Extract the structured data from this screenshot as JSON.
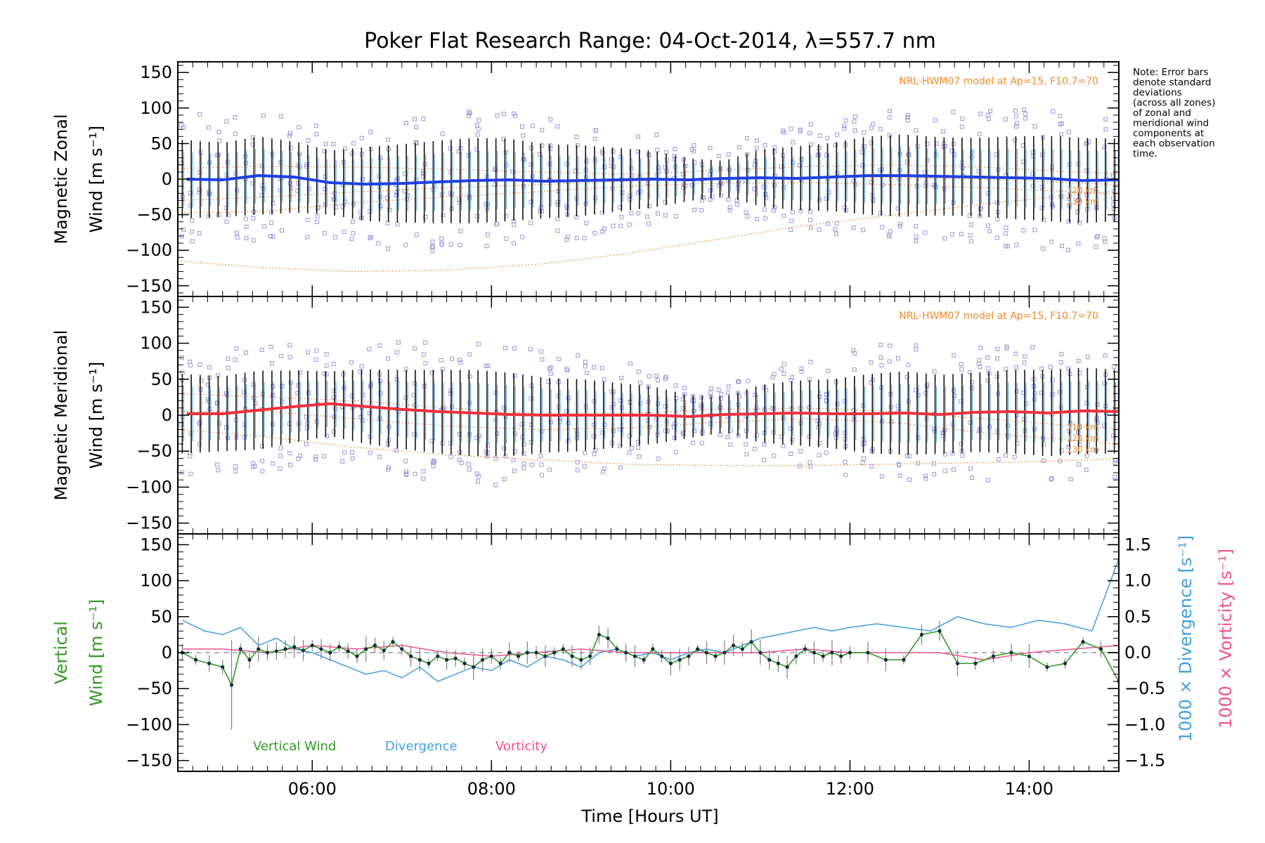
{
  "figure": {
    "title": "Poker Flat Research Range: 04-Oct-2014, λ=557.7 nm",
    "xlabel": "Time [Hours UT]",
    "note_lines": [
      "Note: Error bars",
      "denote standard",
      "deviations",
      "(across all zones)",
      "of zonal and",
      "meridional wind",
      "components at",
      "each observation",
      "time."
    ],
    "colors": {
      "zonal": "#1f3fe0",
      "meridional": "#f0303a",
      "model": "#f08a2a",
      "scatter": "#9c96dc",
      "errbar": "#101010",
      "vertical": "#2f9a20",
      "divergence": "#3f9fe0",
      "vorticity": "#f05090",
      "gray": "#808080"
    }
  },
  "chart_data": [
    {
      "type": "scatter",
      "panel": "zonal",
      "ylabel_lines": [
        "Magnetic Zonal",
        "Wind [m s⁻¹]"
      ],
      "ylim": [
        -165,
        165
      ],
      "xlim": [
        4.5,
        15.0
      ],
      "xticks": [
        "06:00",
        "08:00",
        "10:00",
        "12:00",
        "14:00"
      ],
      "xtick_values": [
        6,
        8,
        10,
        12,
        14
      ],
      "yticks": [
        -150,
        -100,
        -50,
        0,
        50,
        100,
        150
      ],
      "model_label": "NRL-HWM07 model at Ap=15, F10.7=70",
      "model_alt_labels": [
        "120 km",
        "130 km"
      ],
      "model_curves": [
        {
          "x": [
            4.5,
            5.5,
            6.5,
            7.5,
            8.5,
            9.5,
            10.5,
            11.5,
            12.5,
            13.5,
            14.5,
            15.0
          ],
          "y": [
            -115,
            -125,
            -130,
            -128,
            -120,
            -105,
            -85,
            -65,
            -50,
            -35,
            -22,
            -17
          ]
        },
        {
          "x": [
            4.5,
            5.5,
            6.5,
            7.5,
            8.5,
            9.5,
            10.5,
            11.5,
            12.5,
            13.5,
            14.5,
            15.0
          ],
          "y": [
            -48,
            -45,
            -33,
            -25,
            -18,
            -10,
            -6,
            -5,
            -8,
            -12,
            -18,
            -22
          ]
        },
        {
          "x": [
            4.5,
            5.5,
            6.5,
            7.5,
            8.5,
            9.5,
            10.5,
            11.5,
            12.5,
            13.5,
            14.5,
            15.0
          ],
          "y": [
            -30,
            -25,
            -18,
            -12,
            -8,
            -3,
            2,
            3,
            2,
            0,
            -5,
            -8
          ]
        },
        {
          "x": [
            4.5,
            5.5,
            6.5,
            7.5,
            8.5,
            9.5,
            10.5,
            11.5,
            12.5,
            13.5,
            14.5,
            15.0
          ],
          "y": [
            15,
            18,
            17,
            14,
            10,
            7,
            12,
            18,
            20,
            17,
            10,
            8
          ]
        }
      ],
      "mean_series": {
        "x": [
          4.6,
          5.0,
          5.4,
          5.8,
          6.2,
          6.6,
          7.0,
          7.4,
          7.8,
          8.2,
          8.6,
          9.0,
          9.4,
          9.8,
          10.2,
          10.6,
          11.0,
          11.4,
          11.8,
          12.2,
          12.6,
          13.0,
          13.4,
          13.8,
          14.2,
          14.6,
          15.0
        ],
        "y": [
          0,
          -1,
          5,
          3,
          -5,
          -7,
          -6,
          -4,
          -2,
          -1,
          -3,
          -2,
          -1,
          0,
          -1,
          1,
          2,
          1,
          3,
          5,
          5,
          4,
          3,
          2,
          1,
          -2,
          -1
        ]
      },
      "errorbar_sigma": [
        55,
        52,
        55,
        50,
        45,
        52,
        55,
        58,
        60,
        58,
        52,
        50,
        45,
        40,
        30,
        25,
        40,
        45,
        48,
        55,
        58,
        55,
        55,
        58,
        60,
        60,
        58
      ]
    },
    {
      "type": "scatter",
      "panel": "meridional",
      "ylabel_lines": [
        "Magnetic Meridional",
        "Wind [m s⁻¹]"
      ],
      "ylim": [
        -165,
        165
      ],
      "xlim": [
        4.5,
        15.0
      ],
      "xticks": [
        "06:00",
        "08:00",
        "10:00",
        "12:00",
        "14:00"
      ],
      "xtick_values": [
        6,
        8,
        10,
        12,
        14
      ],
      "yticks": [
        -150,
        -100,
        -50,
        0,
        50,
        100,
        150
      ],
      "model_label": "NRL-HWM07 model at Ap=15, F10.7=70",
      "model_alt_labels": [
        "110 km",
        "120 km",
        "130 km"
      ],
      "model_curves": [
        {
          "x": [
            4.5,
            5.5,
            6.5,
            7.5,
            8.5,
            9.5,
            10.5,
            11.5,
            12.5,
            13.5,
            14.5,
            15.0
          ],
          "y": [
            -20,
            -30,
            -45,
            -55,
            -62,
            -68,
            -70,
            -70,
            -68,
            -66,
            -63,
            -60
          ]
        },
        {
          "x": [
            4.5,
            5.5,
            6.5,
            7.5,
            8.5,
            9.5,
            10.5,
            11.5,
            12.5,
            13.5,
            14.5,
            15.0
          ],
          "y": [
            5,
            5,
            -5,
            -15,
            -20,
            -18,
            -10,
            -5,
            -10,
            -25,
            -35,
            -40
          ]
        },
        {
          "x": [
            4.5,
            5.5,
            6.5,
            7.5,
            8.5,
            9.5,
            10.5,
            11.5,
            12.5,
            13.5,
            14.5,
            15.0
          ],
          "y": [
            30,
            25,
            20,
            10,
            2,
            2,
            8,
            10,
            5,
            -5,
            -15,
            -20
          ]
        }
      ],
      "mean_series": {
        "x": [
          4.6,
          5.0,
          5.4,
          5.8,
          6.2,
          6.6,
          7.0,
          7.4,
          7.8,
          8.2,
          8.6,
          9.0,
          9.4,
          9.8,
          10.2,
          10.6,
          11.0,
          11.4,
          11.8,
          12.2,
          12.6,
          13.0,
          13.4,
          13.8,
          14.2,
          14.6,
          15.0
        ],
        "y": [
          2,
          2,
          7,
          12,
          16,
          12,
          8,
          5,
          3,
          1,
          0,
          0,
          0,
          0,
          -2,
          1,
          2,
          3,
          2,
          2,
          3,
          1,
          4,
          5,
          3,
          6,
          5
        ]
      },
      "errorbar_sigma": [
        55,
        52,
        55,
        50,
        45,
        52,
        55,
        58,
        60,
        58,
        52,
        50,
        45,
        40,
        30,
        25,
        40,
        45,
        48,
        55,
        58,
        55,
        55,
        58,
        60,
        60,
        58
      ]
    },
    {
      "type": "line",
      "panel": "vertical",
      "ylabel_lines": [
        "Vertical",
        "Wind [m s⁻¹]"
      ],
      "right_ylabels": [
        "1000 × Divergence [s⁻¹]",
        "1000 × Vorticity [s⁻¹]"
      ],
      "ylim": [
        -165,
        165
      ],
      "y2lim": [
        -1.65,
        1.65
      ],
      "xlim": [
        4.5,
        15.0
      ],
      "xticks": [
        "06:00",
        "08:00",
        "10:00",
        "12:00",
        "14:00"
      ],
      "xtick_values": [
        6,
        8,
        10,
        12,
        14
      ],
      "yticks": [
        -150,
        -100,
        -50,
        0,
        50,
        100,
        150
      ],
      "y2ticks": [
        "-1.5",
        "-1.0",
        "-0.5",
        "0.0",
        "0.5",
        "1.0",
        "1.5"
      ],
      "y2tick_values": [
        -1.5,
        -1.0,
        -0.5,
        0.0,
        0.5,
        1.0,
        1.5
      ],
      "legend": [
        "Vertical Wind",
        "Divergence",
        "Vorticity"
      ],
      "series": [
        {
          "name": "Vertical Wind",
          "x": [
            4.55,
            4.7,
            4.85,
            5.0,
            5.1,
            5.2,
            5.3,
            5.4,
            5.5,
            5.6,
            5.7,
            5.8,
            5.9,
            6.0,
            6.1,
            6.2,
            6.3,
            6.4,
            6.5,
            6.6,
            6.7,
            6.8,
            6.9,
            7.0,
            7.1,
            7.2,
            7.3,
            7.4,
            7.5,
            7.6,
            7.7,
            7.8,
            7.9,
            8.0,
            8.1,
            8.2,
            8.3,
            8.4,
            8.5,
            8.6,
            8.7,
            8.8,
            8.9,
            9.0,
            9.1,
            9.2,
            9.3,
            9.4,
            9.5,
            9.6,
            9.7,
            9.8,
            9.9,
            10.0,
            10.1,
            10.2,
            10.3,
            10.4,
            10.5,
            10.6,
            10.7,
            10.8,
            10.9,
            11.0,
            11.1,
            11.2,
            11.3,
            11.4,
            11.5,
            11.6,
            11.7,
            11.8,
            11.9,
            12.0,
            12.2,
            12.4,
            12.6,
            12.8,
            13.0,
            13.2,
            13.4,
            13.6,
            13.8,
            14.0,
            14.2,
            14.4,
            14.6,
            14.8,
            15.0
          ],
          "y": [
            0,
            -10,
            -15,
            -20,
            -45,
            5,
            -10,
            5,
            0,
            2,
            5,
            8,
            3,
            10,
            5,
            0,
            8,
            2,
            -5,
            5,
            10,
            3,
            15,
            5,
            -5,
            -10,
            -15,
            -5,
            -10,
            -8,
            -15,
            -20,
            -10,
            -5,
            -15,
            0,
            -5,
            0,
            0,
            -5,
            0,
            5,
            -5,
            -10,
            -5,
            25,
            20,
            5,
            0,
            -5,
            -10,
            5,
            -5,
            -15,
            -10,
            -5,
            5,
            0,
            -5,
            0,
            10,
            5,
            15,
            0,
            -10,
            -15,
            -20,
            -5,
            5,
            0,
            -5,
            0,
            -5,
            0,
            0,
            -10,
            -10,
            25,
            30,
            -15,
            -15,
            -5,
            0,
            -5,
            -20,
            -15,
            15,
            5,
            -40
          ]
        },
        {
          "name": "Divergence",
          "y_axis": "right",
          "x": [
            4.55,
            4.8,
            5.0,
            5.2,
            5.4,
            5.6,
            5.8,
            6.0,
            6.2,
            6.4,
            6.6,
            6.8,
            7.0,
            7.2,
            7.4,
            7.6,
            7.8,
            8.0,
            8.2,
            8.4,
            8.6,
            8.8,
            9.0,
            9.2,
            9.4,
            9.6,
            9.8,
            10.0,
            10.2,
            10.4,
            10.6,
            10.8,
            11.0,
            11.2,
            11.4,
            11.6,
            11.8,
            12.0,
            12.3,
            12.6,
            12.9,
            13.2,
            13.5,
            13.8,
            14.1,
            14.4,
            14.7,
            15.0
          ],
          "y": [
            0.45,
            0.3,
            0.25,
            0.35,
            0.1,
            0.2,
            0.05,
            0.0,
            -0.1,
            -0.2,
            -0.3,
            -0.25,
            -0.35,
            -0.2,
            -0.4,
            -0.3,
            -0.2,
            -0.25,
            -0.1,
            -0.2,
            -0.05,
            -0.1,
            -0.2,
            0.0,
            0.05,
            -0.05,
            0.0,
            -0.1,
            0.0,
            0.05,
            0.0,
            0.1,
            0.2,
            0.25,
            0.3,
            0.35,
            0.3,
            0.35,
            0.4,
            0.35,
            0.3,
            0.5,
            0.4,
            0.35,
            0.45,
            0.4,
            0.3,
            1.3
          ]
        },
        {
          "name": "Vorticity",
          "y_axis": "right",
          "x": [
            4.55,
            5.0,
            5.5,
            6.0,
            6.5,
            7.0,
            7.5,
            8.0,
            8.5,
            9.0,
            9.5,
            10.0,
            10.5,
            11.0,
            11.5,
            12.0,
            12.5,
            13.0,
            13.5,
            14.0,
            14.5,
            15.0
          ],
          "y": [
            0.05,
            0.05,
            0.0,
            0.1,
            0.05,
            0.1,
            0.0,
            -0.05,
            0.0,
            0.05,
            0.0,
            0.0,
            0.0,
            0.0,
            0.05,
            0.0,
            0.0,
            0.0,
            -0.1,
            0.0,
            0.05,
            0.1
          ]
        }
      ],
      "vertical_errorbar_sigma": 10
    }
  ]
}
